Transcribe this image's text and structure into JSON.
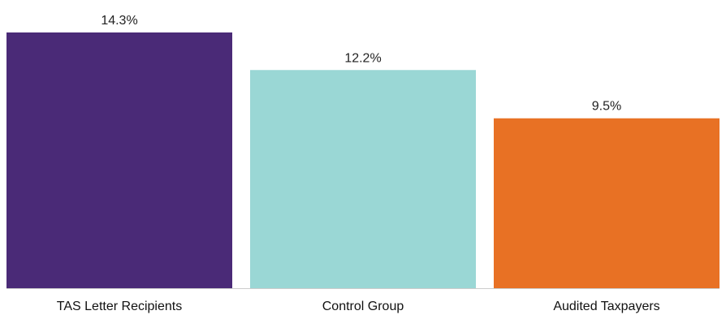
{
  "chart_data": {
    "type": "bar",
    "categories": [
      "TAS Letter Recipients",
      "Control Group",
      "Audited Taxpayers"
    ],
    "values": [
      14.3,
      12.2,
      9.5
    ],
    "value_labels": [
      "14.3%",
      "12.2%",
      "9.5%"
    ],
    "colors": [
      "#4a2a77",
      "#9ad7d5",
      "#e87124"
    ],
    "ylim": [
      0,
      14.3
    ],
    "grid": false,
    "legend": "none",
    "baseline_color": "#cccccc"
  }
}
